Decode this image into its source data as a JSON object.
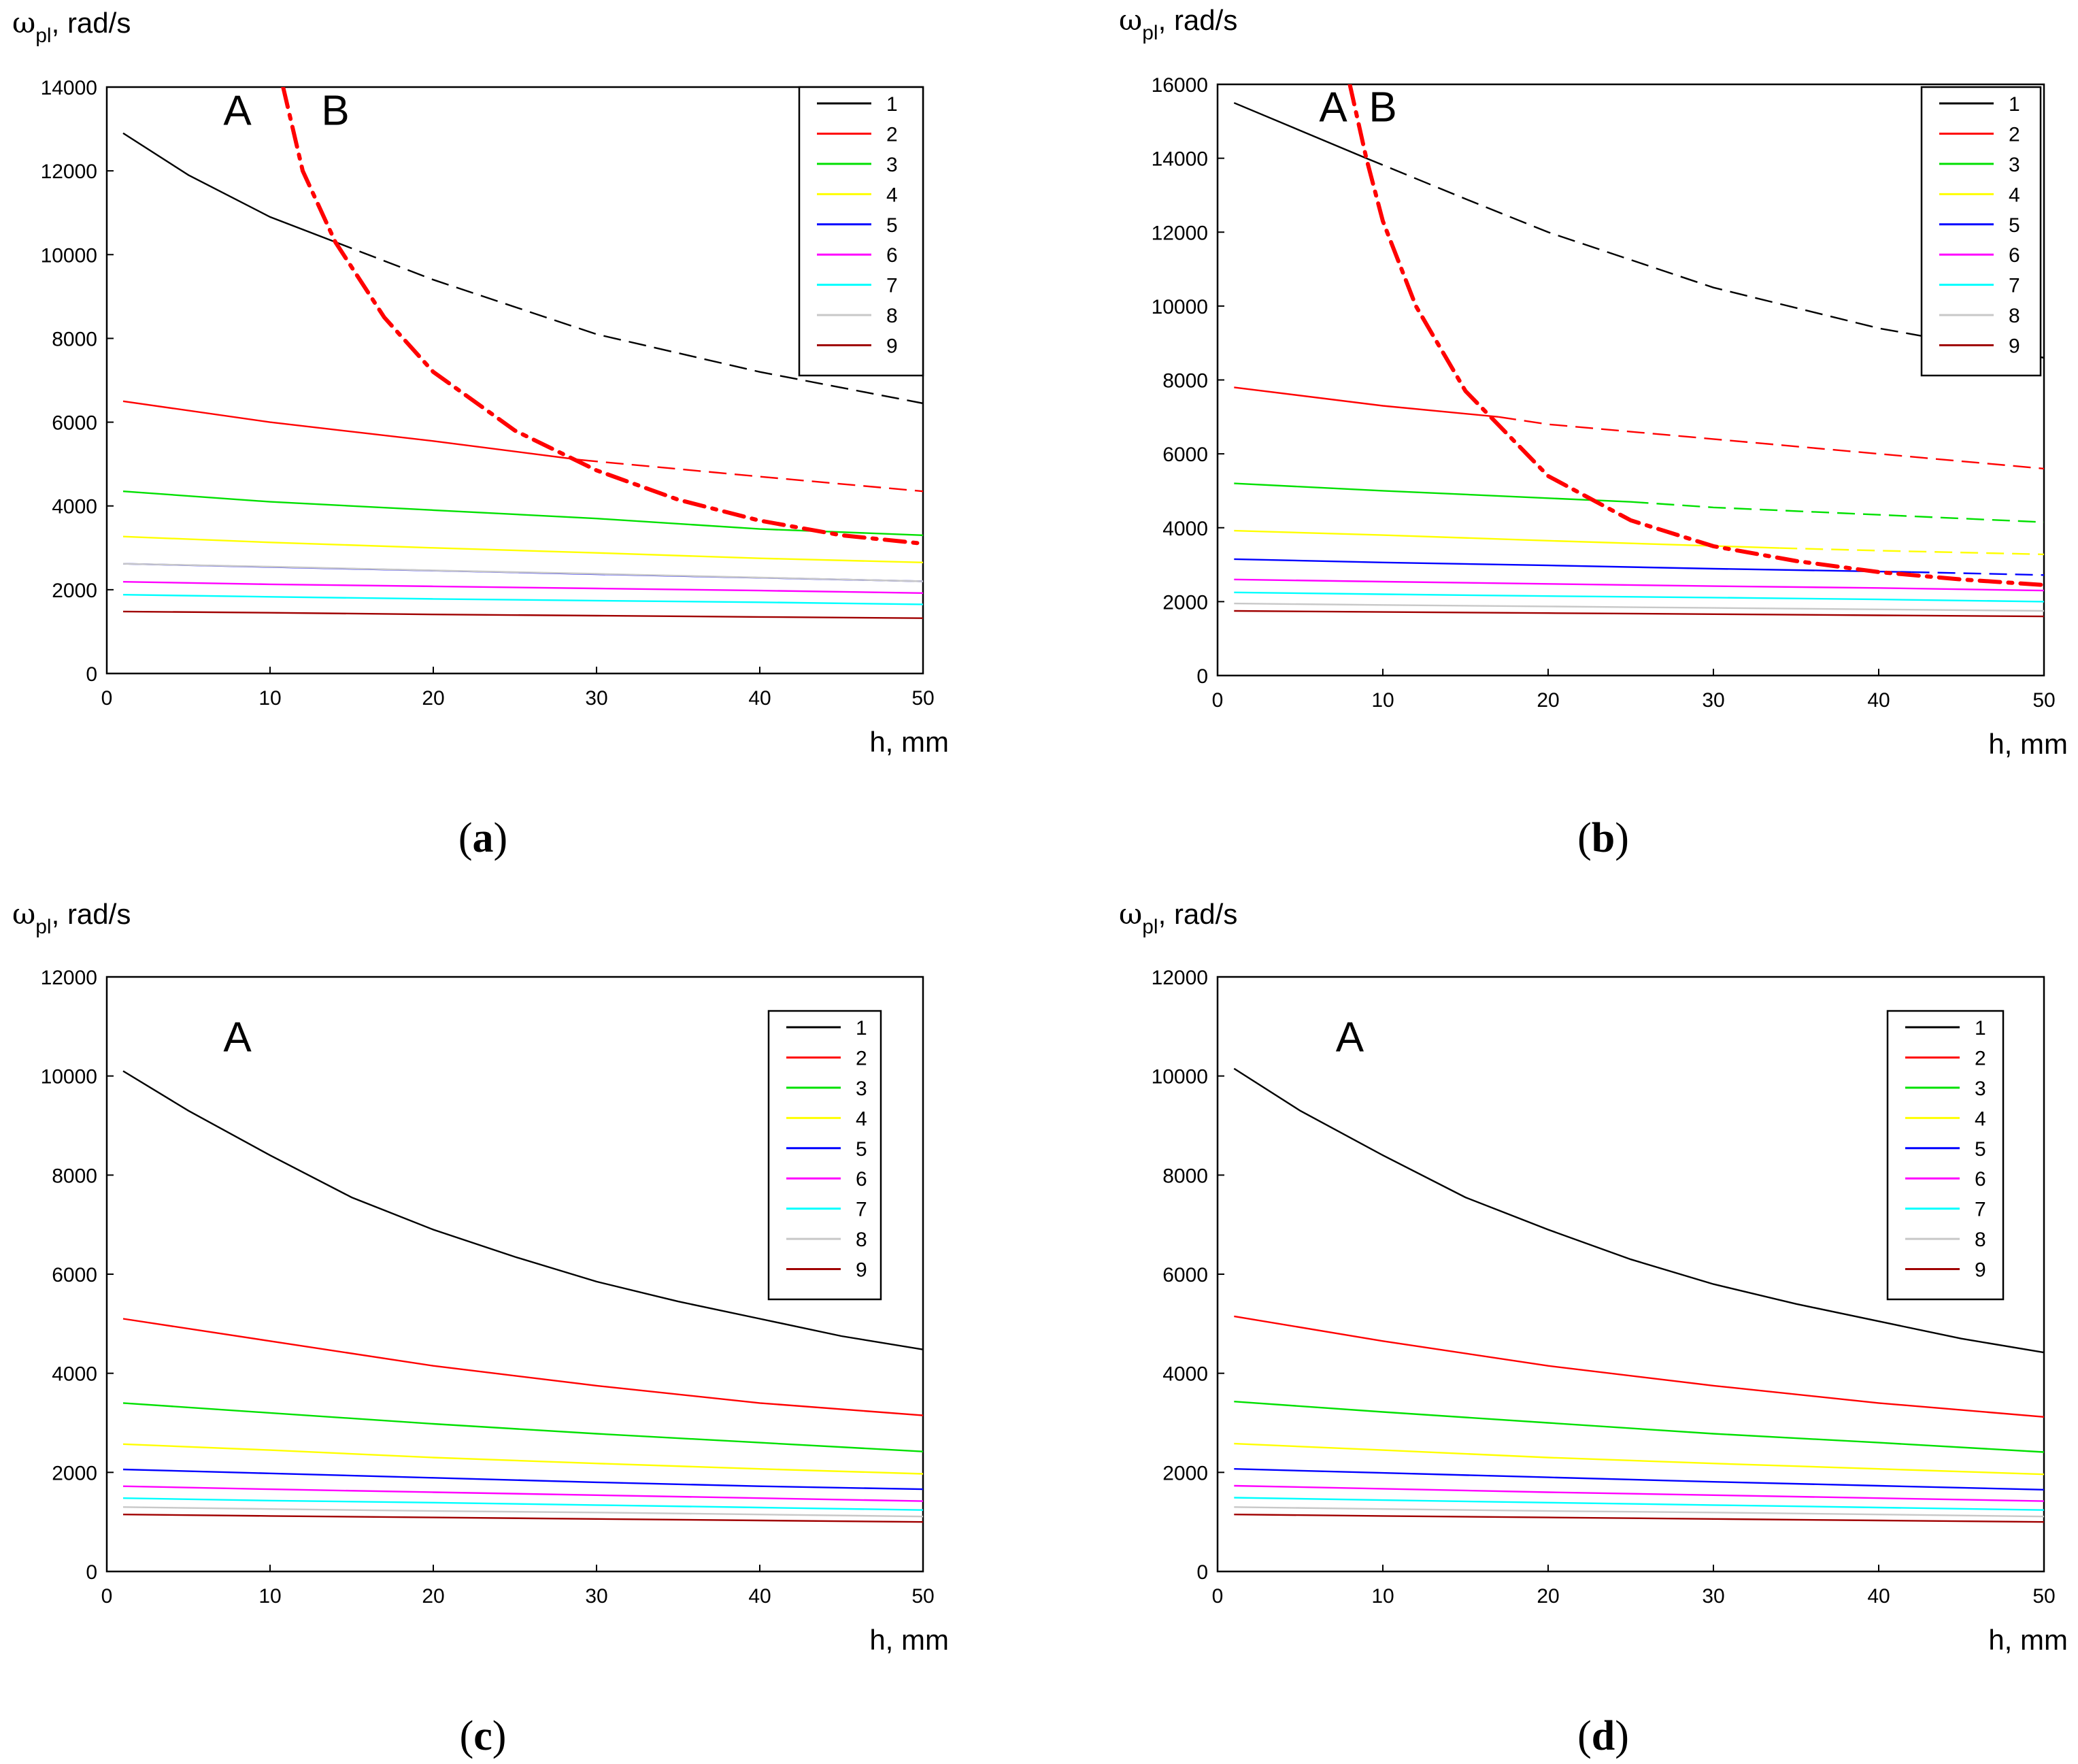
{
  "figure": {
    "panel_labels": [
      "(a)",
      "(b)",
      "(c)",
      "(d)"
    ]
  },
  "chart_data": [
    {
      "type": "line",
      "panel": "a",
      "caption_letter": "a",
      "ylabel_symbol": "ω",
      "ylabel_sub": "pl",
      "ylabel_unit": ", rad/s",
      "xlabel": "h, mm",
      "xlim": [
        0,
        50
      ],
      "ylim": [
        0,
        14000
      ],
      "xticks": [
        0,
        10,
        20,
        30,
        40,
        50
      ],
      "yticks": [
        0,
        2000,
        4000,
        6000,
        8000,
        10000,
        12000,
        14000
      ],
      "grid": false,
      "legend_position": "top-right",
      "region_labels": [
        {
          "text": "A",
          "x": 8,
          "y": 13100
        },
        {
          "text": "B",
          "x": 14,
          "y": 13100
        }
      ],
      "series": [
        {
          "name": "1",
          "color": "#000000",
          "x": [
            1,
            5,
            10,
            14,
            20,
            30,
            40,
            50
          ],
          "values": [
            12900,
            11900,
            10900,
            10300,
            9400,
            8100,
            7200,
            6450
          ],
          "dash_from_x": 14
        },
        {
          "name": "2",
          "color": "#ff0000",
          "x": [
            1,
            10,
            20,
            29,
            40,
            50
          ],
          "values": [
            6500,
            6000,
            5550,
            5100,
            4700,
            4350
          ],
          "dash_from_x": 29
        },
        {
          "name": "3",
          "color": "#00e000",
          "x": [
            1,
            10,
            20,
            30,
            40,
            50
          ],
          "values": [
            4350,
            4100,
            3900,
            3700,
            3450,
            3300
          ]
        },
        {
          "name": "4",
          "color": "#ffff00",
          "x": [
            1,
            10,
            20,
            30,
            40,
            50
          ],
          "values": [
            3270,
            3130,
            3000,
            2880,
            2750,
            2650
          ]
        },
        {
          "name": "5",
          "color": "#0000ff",
          "x": [
            1,
            50
          ],
          "values": [
            2620,
            2200
          ]
        },
        {
          "name": "6",
          "color": "#ff00ff",
          "x": [
            1,
            10,
            20,
            30,
            40,
            50
          ],
          "values": [
            2190,
            2130,
            2080,
            2030,
            1980,
            1920
          ]
        },
        {
          "name": "7",
          "color": "#00ffff",
          "x": [
            1,
            10,
            20,
            30,
            40,
            50
          ],
          "values": [
            1880,
            1830,
            1780,
            1740,
            1700,
            1650
          ]
        },
        {
          "name": "8",
          "color": "#c8c8c8",
          "x": [
            1,
            10,
            20,
            30,
            40,
            50
          ],
          "values": [
            2620,
            2550,
            2460,
            2380,
            2290,
            2200
          ]
        },
        {
          "name": "9",
          "color": "#a00000",
          "x": [
            1,
            10,
            20,
            30,
            40,
            50
          ],
          "values": [
            1480,
            1450,
            1410,
            1380,
            1350,
            1320
          ]
        }
      ],
      "boundary_curve": {
        "color": "#ff0000",
        "style": "dash-dot",
        "x": [
          10.8,
          12,
          14,
          17,
          20,
          25,
          30,
          35,
          40,
          45,
          50
        ],
        "values": [
          14000,
          12000,
          10300,
          8500,
          7200,
          5800,
          4850,
          4150,
          3650,
          3300,
          3100
        ]
      }
    },
    {
      "type": "line",
      "panel": "b",
      "caption_letter": "b",
      "ylabel_symbol": "ω",
      "ylabel_sub": "pl",
      "ylabel_unit": ", rad/s",
      "xlabel": "h, mm",
      "xlim": [
        0,
        50
      ],
      "ylim": [
        0,
        16000
      ],
      "xticks": [
        0,
        10,
        20,
        30,
        40,
        50
      ],
      "yticks": [
        0,
        2000,
        4000,
        6000,
        8000,
        10000,
        12000,
        14000,
        16000
      ],
      "grid": false,
      "legend_position": "top-right",
      "region_labels": [
        {
          "text": "A",
          "x": 7,
          "y": 15000
        },
        {
          "text": "B",
          "x": 10,
          "y": 15000
        }
      ],
      "series": [
        {
          "name": "1",
          "color": "#000000",
          "x": [
            1,
            9,
            15,
            20,
            30,
            40,
            50
          ],
          "values": [
            15500,
            14000,
            12900,
            12000,
            10500,
            9400,
            8600
          ],
          "dash_from_x": 9
        },
        {
          "name": "2",
          "color": "#ff0000",
          "x": [
            1,
            10,
            17,
            20,
            30,
            40,
            50
          ],
          "values": [
            7800,
            7300,
            7000,
            6800,
            6400,
            6000,
            5600
          ],
          "dash_from_x": 17
        },
        {
          "name": "3",
          "color": "#00e000",
          "x": [
            1,
            10,
            20,
            25,
            30,
            40,
            50
          ],
          "values": [
            5200,
            5000,
            4800,
            4700,
            4550,
            4350,
            4150
          ],
          "dash_from_x": 25
        },
        {
          "name": "4",
          "color": "#ffff00",
          "x": [
            1,
            10,
            20,
            34,
            40,
            50
          ],
          "values": [
            3920,
            3800,
            3650,
            3450,
            3380,
            3280
          ],
          "dash_from_x": 34
        },
        {
          "name": "5",
          "color": "#0000ff",
          "x": [
            1,
            10,
            20,
            30,
            42,
            50
          ],
          "values": [
            3150,
            3060,
            2980,
            2890,
            2800,
            2720
          ],
          "dash_from_x": 42
        },
        {
          "name": "6",
          "color": "#ff00ff",
          "x": [
            1,
            10,
            20,
            30,
            40,
            50
          ],
          "values": [
            2600,
            2540,
            2480,
            2420,
            2370,
            2300
          ]
        },
        {
          "name": "7",
          "color": "#00ffff",
          "x": [
            1,
            10,
            20,
            30,
            40,
            50
          ],
          "values": [
            2250,
            2200,
            2150,
            2110,
            2060,
            2000
          ]
        },
        {
          "name": "8",
          "color": "#c8c8c8",
          "x": [
            1,
            10,
            20,
            30,
            40,
            50
          ],
          "values": [
            1950,
            1910,
            1870,
            1830,
            1790,
            1750
          ]
        },
        {
          "name": "9",
          "color": "#a00000",
          "x": [
            1,
            10,
            20,
            30,
            40,
            50
          ],
          "values": [
            1750,
            1720,
            1690,
            1660,
            1630,
            1600
          ]
        }
      ],
      "boundary_curve": {
        "color": "#ff0000",
        "style": "dash-dot",
        "x": [
          8,
          9,
          10,
          12,
          15,
          20,
          25,
          30,
          35,
          40,
          45,
          50
        ],
        "values": [
          16000,
          14000,
          12300,
          10000,
          7700,
          5400,
          4200,
          3500,
          3100,
          2800,
          2600,
          2450
        ]
      }
    },
    {
      "type": "line",
      "panel": "c",
      "caption_letter": "c",
      "ylabel_symbol": "ω",
      "ylabel_sub": "pl",
      "ylabel_unit": ", rad/s",
      "xlabel": "h, mm",
      "xlim": [
        0,
        50
      ],
      "ylim": [
        0,
        12000
      ],
      "xticks": [
        0,
        10,
        20,
        30,
        40,
        50
      ],
      "yticks": [
        0,
        2000,
        4000,
        6000,
        8000,
        10000,
        12000
      ],
      "grid": false,
      "legend_position": "top-right",
      "region_labels": [
        {
          "text": "A",
          "x": 8,
          "y": 10500
        }
      ],
      "series": [
        {
          "name": "1",
          "color": "#000000",
          "x": [
            1,
            5,
            10,
            15,
            20,
            25,
            30,
            35,
            40,
            45,
            50
          ],
          "values": [
            10100,
            9300,
            8400,
            7550,
            6900,
            6350,
            5850,
            5450,
            5100,
            4750,
            4480
          ]
        },
        {
          "name": "2",
          "color": "#ff0000",
          "x": [
            1,
            10,
            20,
            30,
            40,
            50
          ],
          "values": [
            5100,
            4650,
            4150,
            3750,
            3400,
            3150
          ]
        },
        {
          "name": "3",
          "color": "#00e000",
          "x": [
            1,
            10,
            20,
            30,
            40,
            50
          ],
          "values": [
            3400,
            3200,
            2980,
            2780,
            2600,
            2420
          ]
        },
        {
          "name": "4",
          "color": "#ffff00",
          "x": [
            1,
            10,
            20,
            30,
            40,
            50
          ],
          "values": [
            2570,
            2450,
            2300,
            2180,
            2070,
            1970
          ]
        },
        {
          "name": "5",
          "color": "#0000ff",
          "x": [
            1,
            10,
            20,
            30,
            40,
            50
          ],
          "values": [
            2060,
            1980,
            1890,
            1800,
            1720,
            1660
          ]
        },
        {
          "name": "6",
          "color": "#ff00ff",
          "x": [
            1,
            10,
            20,
            30,
            40,
            50
          ],
          "values": [
            1720,
            1660,
            1600,
            1540,
            1480,
            1420
          ]
        },
        {
          "name": "7",
          "color": "#00ffff",
          "x": [
            1,
            10,
            20,
            30,
            40,
            50
          ],
          "values": [
            1480,
            1430,
            1390,
            1340,
            1290,
            1240
          ]
        },
        {
          "name": "8",
          "color": "#c8c8c8",
          "x": [
            1,
            10,
            20,
            30,
            40,
            50
          ],
          "values": [
            1300,
            1260,
            1220,
            1190,
            1150,
            1110
          ]
        },
        {
          "name": "9",
          "color": "#a00000",
          "x": [
            1,
            10,
            20,
            30,
            40,
            50
          ],
          "values": [
            1150,
            1120,
            1090,
            1060,
            1030,
            1000
          ]
        }
      ]
    },
    {
      "type": "line",
      "panel": "d",
      "caption_letter": "d",
      "ylabel_symbol": "ω",
      "ylabel_sub": "pl",
      "ylabel_unit": ", rad/s",
      "xlabel": "h, mm",
      "xlim": [
        0,
        50
      ],
      "ylim": [
        0,
        12000
      ],
      "xticks": [
        0,
        10,
        20,
        30,
        40,
        50
      ],
      "yticks": [
        0,
        2000,
        4000,
        6000,
        8000,
        10000,
        12000
      ],
      "grid": false,
      "legend_position": "top-right",
      "region_labels": [
        {
          "text": "A",
          "x": 8,
          "y": 10500
        }
      ],
      "series": [
        {
          "name": "1",
          "color": "#000000",
          "x": [
            1,
            5,
            10,
            15,
            20,
            25,
            30,
            35,
            40,
            45,
            50
          ],
          "values": [
            10150,
            9300,
            8400,
            7550,
            6900,
            6300,
            5800,
            5400,
            5050,
            4700,
            4420
          ]
        },
        {
          "name": "2",
          "color": "#ff0000",
          "x": [
            1,
            10,
            20,
            30,
            40,
            50
          ],
          "values": [
            5150,
            4650,
            4150,
            3750,
            3400,
            3120
          ]
        },
        {
          "name": "3",
          "color": "#00e000",
          "x": [
            1,
            10,
            20,
            30,
            40,
            50
          ],
          "values": [
            3430,
            3220,
            3000,
            2780,
            2600,
            2410
          ]
        },
        {
          "name": "4",
          "color": "#ffff00",
          "x": [
            1,
            10,
            20,
            30,
            40,
            50
          ],
          "values": [
            2580,
            2450,
            2300,
            2180,
            2070,
            1960
          ]
        },
        {
          "name": "5",
          "color": "#0000ff",
          "x": [
            1,
            10,
            20,
            30,
            40,
            50
          ],
          "values": [
            2070,
            1990,
            1900,
            1810,
            1730,
            1650
          ]
        },
        {
          "name": "6",
          "color": "#ff00ff",
          "x": [
            1,
            10,
            20,
            30,
            40,
            50
          ],
          "values": [
            1730,
            1670,
            1600,
            1540,
            1480,
            1420
          ]
        },
        {
          "name": "7",
          "color": "#00ffff",
          "x": [
            1,
            10,
            20,
            30,
            40,
            50
          ],
          "values": [
            1490,
            1440,
            1390,
            1340,
            1290,
            1240
          ]
        },
        {
          "name": "8",
          "color": "#c8c8c8",
          "x": [
            1,
            10,
            20,
            30,
            40,
            50
          ],
          "values": [
            1300,
            1260,
            1220,
            1190,
            1150,
            1110
          ]
        },
        {
          "name": "9",
          "color": "#a00000",
          "x": [
            1,
            10,
            20,
            30,
            40,
            50
          ],
          "values": [
            1150,
            1120,
            1090,
            1060,
            1030,
            1000
          ]
        }
      ]
    }
  ]
}
